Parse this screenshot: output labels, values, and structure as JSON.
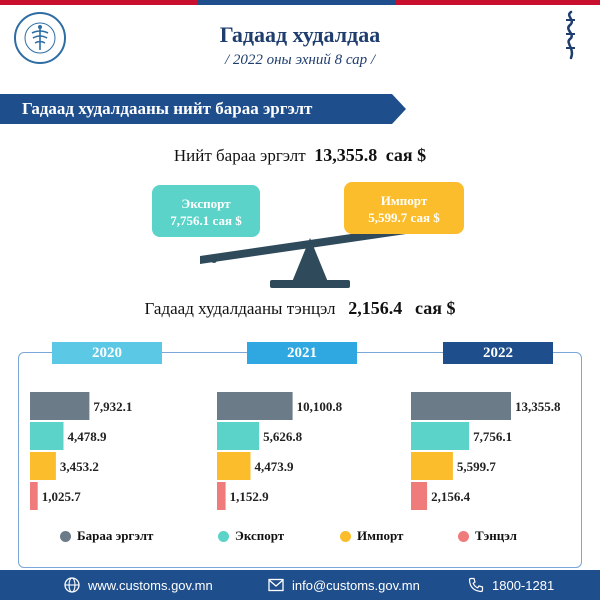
{
  "header": {
    "title": "Гадаад худалдаа",
    "subtitle": "/ 2022 оны эхний 8 сар /"
  },
  "banner": "Гадаад худалдааны нийт бараа эргэлт",
  "total": {
    "label": "Нийт бараа эргэлт",
    "value": "13,355.8",
    "unit": "сая $"
  },
  "export_box": {
    "label": "Экспорт",
    "value": "7,756.1 сая $"
  },
  "import_box": {
    "label": "Импорт",
    "value": "5,599.7 сая $"
  },
  "balance": {
    "label": "Гадаад худалдааны тэнцэл",
    "value": "2,156.4",
    "unit": "сая $"
  },
  "chart_data": {
    "type": "bar",
    "orientation": "horizontal",
    "groups": [
      "2020",
      "2021",
      "2022"
    ],
    "series": [
      {
        "name": "Бараа эргэлт",
        "color": "#6b7b88",
        "values": [
          7932.1,
          10100.8,
          13355.8
        ],
        "labels": [
          "7,932.1",
          "10,100.8",
          "13,355.8"
        ]
      },
      {
        "name": "Экспорт",
        "color": "#5bd3c8",
        "values": [
          4478.9,
          5626.8,
          7756.1
        ],
        "labels": [
          "4,478.9",
          "5,626.8",
          "7,756.1"
        ]
      },
      {
        "name": "Импорт",
        "color": "#fbbd2b",
        "values": [
          3453.2,
          4473.9,
          5599.7
        ],
        "labels": [
          "3,453.2",
          "4,473.9",
          "5,599.7"
        ]
      },
      {
        "name": "Тэнцэл",
        "color": "#f07b7b",
        "values": [
          1025.7,
          1152.9,
          2156.4
        ],
        "labels": [
          "1,025.7",
          "1,152.9",
          "2,156.4"
        ]
      }
    ],
    "group_colors": [
      "#5bc8e6",
      "#2fa7e0",
      "#1f4e8c"
    ]
  },
  "footer": {
    "website": "www.customs.gov.mn",
    "email": "info@customs.gov.mn",
    "phone": "1800-1281"
  },
  "icons": [
    "customs-logo-icon",
    "soyombo-script-icon",
    "globe-icon",
    "mail-icon",
    "phone-icon"
  ]
}
